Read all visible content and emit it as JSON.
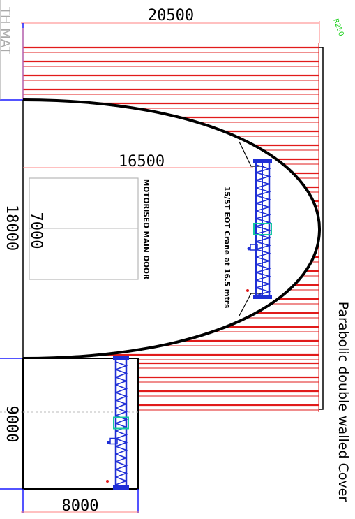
{
  "header": {
    "cropped_label": "TH MAT",
    "radius_note": "R250"
  },
  "dimensions": {
    "top_width": "20500",
    "inner_width": "16500",
    "door_width": "7000",
    "left_height": "18000",
    "annex_height": "9000",
    "annex_width": "8000"
  },
  "labels": {
    "door": "MOTORISED MAIN DOOR",
    "crane": "15/5T EOT Crane at 16.5 mtrs",
    "title": "Parabolic double walled Cover"
  },
  "colors": {
    "wall_lines": "#e11b1b",
    "dimension_lines": "#ff8080",
    "crane_frame": "#1f2fd6",
    "crane_highlight": "#14c7a0",
    "outline": "#000000",
    "radius_note": "#1fd11f",
    "dim_tick": "#1a1aff"
  }
}
